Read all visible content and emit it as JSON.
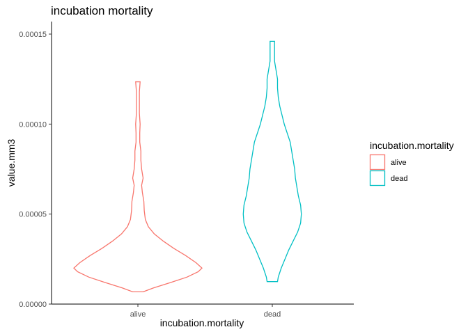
{
  "chart_data": {
    "type": "violin",
    "title": "incubation mortality",
    "xlabel": "incubation.mortality",
    "ylabel": "value.mm3",
    "categories": [
      "alive",
      "dead"
    ],
    "ylim": [
      0,
      0.00015
    ],
    "yticks": [
      0,
      5e-05,
      0.0001,
      0.00015
    ],
    "ytick_labels": [
      "0.00000",
      "0.00005",
      "0.00010",
      "0.00015"
    ],
    "grid": false,
    "legend": {
      "title": "incubation.mortality",
      "position": "right",
      "entries": [
        {
          "label": "alive",
          "color": "#F8766D"
        },
        {
          "label": "dead",
          "color": "#00BFC4"
        }
      ]
    },
    "series": [
      {
        "name": "alive",
        "color": "#F8766D",
        "min": 6.8e-06,
        "max": 0.0001235,
        "density_unit": 1e-06,
        "profile": [
          [
            6.8e-06,
            7
          ],
          [
            9e-06,
            21
          ],
          [
            1.2e-05,
            44
          ],
          [
            1.5e-05,
            66
          ],
          [
            1.8e-05,
            81
          ],
          [
            2e-05,
            86
          ],
          [
            2.3e-05,
            78
          ],
          [
            2.7e-05,
            64
          ],
          [
            3.1e-05,
            48
          ],
          [
            3.5e-05,
            34
          ],
          [
            3.9e-05,
            22
          ],
          [
            4.3e-05,
            14
          ],
          [
            4.7e-05,
            10
          ],
          [
            5.2e-05,
            8.5
          ],
          [
            5.7e-05,
            8
          ],
          [
            6.2e-05,
            6
          ],
          [
            6.6e-05,
            5
          ],
          [
            7e-05,
            7
          ],
          [
            7.5e-05,
            5
          ],
          [
            8e-05,
            4
          ],
          [
            8.5e-05,
            4
          ],
          [
            9e-05,
            2.5
          ],
          [
            9.5e-05,
            2.5
          ],
          [
            0.0001,
            3
          ],
          [
            0.000106,
            2
          ],
          [
            0.000112,
            2
          ],
          [
            0.000118,
            2
          ],
          [
            0.0001235,
            3
          ]
        ]
      },
      {
        "name": "dead",
        "color": "#00BFC4",
        "min": 1.25e-05,
        "max": 0.000146,
        "density_unit": 1e-06,
        "profile": [
          [
            1.25e-05,
            7
          ],
          [
            1.5e-05,
            8
          ],
          [
            2e-05,
            12
          ],
          [
            2.5e-05,
            17
          ],
          [
            3e-05,
            22
          ],
          [
            3.5e-05,
            28
          ],
          [
            4e-05,
            34
          ],
          [
            4.5e-05,
            38
          ],
          [
            5e-05,
            39
          ],
          [
            5.5e-05,
            38
          ],
          [
            6e-05,
            35
          ],
          [
            6.5e-05,
            33
          ],
          [
            7e-05,
            31
          ],
          [
            7.5e-05,
            30
          ],
          [
            8e-05,
            28
          ],
          [
            8.5e-05,
            26
          ],
          [
            9e-05,
            24
          ],
          [
            9.5e-05,
            20
          ],
          [
            0.0001,
            16
          ],
          [
            0.000105,
            13
          ],
          [
            0.00011,
            10
          ],
          [
            0.000115,
            8
          ],
          [
            0.00012,
            7
          ],
          [
            0.000125,
            7
          ],
          [
            0.00013,
            5
          ],
          [
            0.000135,
            3
          ],
          [
            0.00014,
            3
          ],
          [
            0.000146,
            3
          ]
        ]
      }
    ]
  }
}
